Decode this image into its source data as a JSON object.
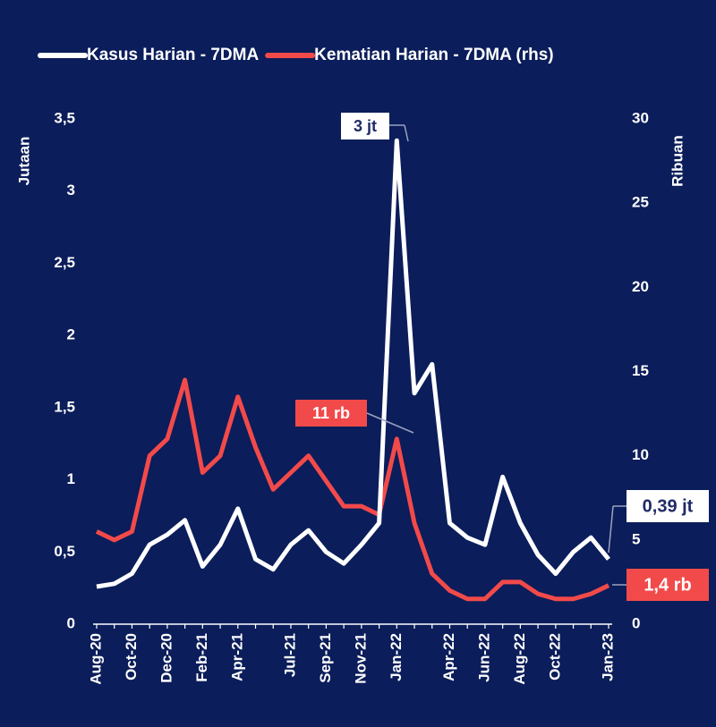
{
  "chart_data": {
    "type": "line",
    "legend": "top",
    "categories": [
      "Aug-20",
      null,
      "Oct-20",
      null,
      "Dec-20",
      null,
      "Feb-21",
      null,
      "Apr-21",
      null,
      null,
      "Jul-21",
      null,
      "Sep-21",
      null,
      "Nov-21",
      null,
      "Jan-22",
      null,
      null,
      "Apr-22",
      null,
      "Jun-22",
      null,
      "Aug-22",
      null,
      "Oct-22",
      null,
      null,
      "Jan-23"
    ],
    "series": [
      {
        "name": "Kasus Harian - 7DMA",
        "color": "#ffffff",
        "axis": "y",
        "values": [
          0.26,
          0.28,
          0.35,
          0.55,
          0.62,
          0.72,
          0.4,
          0.55,
          0.8,
          0.45,
          0.38,
          0.55,
          0.65,
          0.5,
          0.42,
          0.55,
          0.7,
          3.35,
          1.6,
          1.8,
          0.7,
          0.6,
          0.55,
          1.02,
          0.7,
          0.48,
          0.35,
          0.5,
          0.6,
          0.45
        ]
      },
      {
        "name": "Kematian Harian - 7DMA (rhs)",
        "color": "#f24a4a",
        "axis": "y2",
        "values": [
          5.5,
          5,
          5.5,
          10,
          11,
          14.5,
          9,
          10,
          13.5,
          10.5,
          8,
          9,
          10,
          8.5,
          7,
          7,
          6.5,
          11,
          6,
          3,
          2,
          1.5,
          1.5,
          2.5,
          2.5,
          1.8,
          1.5,
          1.5,
          1.8,
          2.3
        ]
      }
    ],
    "ylabel": "Jutaan",
    "y2label": "Ribuan",
    "ylim": [
      0,
      3.5
    ],
    "yticks": [
      0,
      {
        "value": 0.5,
        "label": "0,5"
      },
      1,
      {
        "value": 1.5,
        "label": "1,5"
      },
      2,
      {
        "value": 2.5,
        "label": "2,5"
      },
      3,
      {
        "value": 3.5,
        "label": "3,5"
      }
    ],
    "y2lim": [
      0,
      30
    ],
    "y2ticks": [
      0,
      5,
      10,
      15,
      20,
      25,
      30
    ],
    "annotations": [
      "3  jt",
      "11  rb",
      "0,39 jt",
      "1,4 rb"
    ]
  }
}
